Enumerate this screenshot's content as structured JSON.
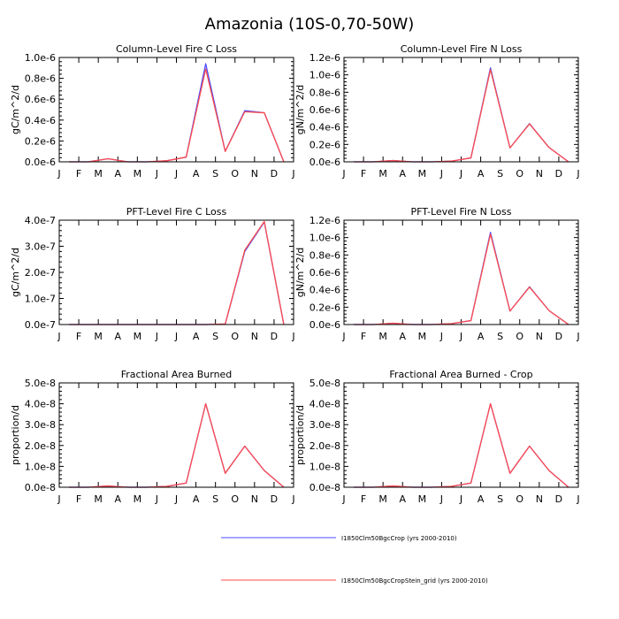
{
  "figure_title": "Amazonia (10S-0,70-50W)",
  "legend": [
    {
      "label": "I1850Clm50BgcCrop (yrs 2000-2010)",
      "color": "#4b4bff"
    },
    {
      "label": "I1850Clm50BgcCropStein_grid (yrs 2000-2010)",
      "color": "#ff4b4b"
    }
  ],
  "chart_data": [
    {
      "type": "line",
      "title": "Column-Level Fire C Loss",
      "ylabel": "gC/m^2/d",
      "ylim": [
        0,
        1e-06
      ],
      "yticks": [
        0,
        2e-07,
        4e-07,
        6e-07,
        8e-07,
        1e-06
      ],
      "ytick_labels": [
        "0.0e-6",
        "0.2e-6",
        "0.4e-6",
        "0.6e-6",
        "0.8e-6",
        "1.0e-6"
      ],
      "x_tick_labels": [
        "J",
        "F",
        "M",
        "A",
        "M",
        "J",
        "J",
        "A",
        "S",
        "O",
        "N",
        "D",
        "J"
      ],
      "series": [
        {
          "name": "I1850Clm50BgcCrop (yrs 2000-2010)",
          "color": "#4b4bff",
          "values": [
            0,
            0,
            3e-08,
            0,
            0,
            1e-08,
            4.5e-08,
            9.4e-07,
            1e-07,
            4.9e-07,
            4.7e-07,
            0
          ]
        },
        {
          "name": "I1850Clm50BgcCropStein_grid (yrs 2000-2010)",
          "color": "#ff4b4b",
          "values": [
            0,
            0,
            3e-08,
            0,
            0,
            1e-08,
            4.5e-08,
            8.9e-07,
            1e-07,
            4.8e-07,
            4.7e-07,
            0
          ]
        }
      ]
    },
    {
      "type": "line",
      "title": "Column-Level Fire N Loss",
      "ylabel": "gN/m^2/d",
      "ylim": [
        0,
        1.2e-06
      ],
      "yticks": [
        0,
        2e-07,
        4e-07,
        6e-07,
        8e-07,
        1e-06,
        1.2e-06
      ],
      "ytick_labels": [
        "0.0e-6",
        "0.2e-6",
        "0.4e-6",
        "0.6e-6",
        "0.8e-6",
        "1.0e-6",
        "1.2e-6"
      ],
      "x_tick_labels": [
        "J",
        "F",
        "M",
        "A",
        "M",
        "J",
        "J",
        "A",
        "S",
        "O",
        "N",
        "D",
        "J"
      ],
      "series": [
        {
          "name": "I1850Clm50BgcCrop (yrs 2000-2010)",
          "color": "#4b4bff",
          "values": [
            0,
            0,
            1.5e-08,
            0,
            0,
            8e-09,
            4.5e-08,
            1.08e-06,
            1.6e-07,
            4.4e-07,
            1.65e-07,
            0
          ]
        },
        {
          "name": "I1850Clm50BgcCropStein_grid (yrs 2000-2010)",
          "color": "#ff4b4b",
          "values": [
            0,
            0,
            1.5e-08,
            0,
            0,
            8e-09,
            4.5e-08,
            1.06e-06,
            1.6e-07,
            4.35e-07,
            1.65e-07,
            0
          ]
        }
      ]
    },
    {
      "type": "line",
      "title": "PFT-Level Fire C Loss",
      "ylabel": "gC/m^2/d",
      "ylim": [
        0,
        4e-07
      ],
      "yticks": [
        0,
        1e-07,
        2e-07,
        3e-07,
        4e-07
      ],
      "ytick_labels": [
        "0.0e-7",
        "1.0e-7",
        "2.0e-7",
        "3.0e-7",
        "4.0e-7"
      ],
      "x_tick_labels": [
        "J",
        "F",
        "M",
        "A",
        "M",
        "J",
        "J",
        "A",
        "S",
        "O",
        "N",
        "D",
        "J"
      ],
      "series": [
        {
          "name": "I1850Clm50BgcCrop (yrs 2000-2010)",
          "color": "#4b4bff",
          "values": [
            0,
            0,
            0,
            0,
            0,
            0,
            0,
            0,
            2e-09,
            2.8e-07,
            3.93e-07,
            0
          ]
        },
        {
          "name": "I1850Clm50BgcCropStein_grid (yrs 2000-2010)",
          "color": "#ff4b4b",
          "values": [
            0,
            0,
            0,
            0,
            0,
            0,
            0,
            0,
            2e-09,
            2.85e-07,
            3.95e-07,
            0
          ]
        }
      ]
    },
    {
      "type": "line",
      "title": "PFT-Level Fire N Loss",
      "ylabel": "gN/m^2/d",
      "ylim": [
        0,
        1.2e-06
      ],
      "yticks": [
        0,
        2e-07,
        4e-07,
        6e-07,
        8e-07,
        1e-06,
        1.2e-06
      ],
      "ytick_labels": [
        "0.0e-6",
        "0.2e-6",
        "0.4e-6",
        "0.6e-6",
        "0.8e-6",
        "1.0e-6",
        "1.2e-6"
      ],
      "x_tick_labels": [
        "J",
        "F",
        "M",
        "A",
        "M",
        "J",
        "J",
        "A",
        "S",
        "O",
        "N",
        "D",
        "J"
      ],
      "series": [
        {
          "name": "I1850Clm50BgcCrop (yrs 2000-2010)",
          "color": "#4b4bff",
          "values": [
            0,
            0,
            1.5e-08,
            0,
            0,
            1e-08,
            4.5e-08,
            1.06e-06,
            1.55e-07,
            4.35e-07,
            1.6e-07,
            0
          ]
        },
        {
          "name": "I1850Clm50BgcCropStein_grid (yrs 2000-2010)",
          "color": "#ff4b4b",
          "values": [
            0,
            0,
            1.5e-08,
            0,
            0,
            1e-08,
            4.5e-08,
            1.04e-06,
            1.55e-07,
            4.3e-07,
            1.6e-07,
            0
          ]
        }
      ]
    },
    {
      "type": "line",
      "title": "Fractional Area Burned",
      "ylabel": "proportion/d",
      "ylim": [
        0,
        5e-08
      ],
      "yticks": [
        0,
        1e-08,
        2e-08,
        3e-08,
        4e-08,
        5e-08
      ],
      "ytick_labels": [
        "0.0e-8",
        "1.0e-8",
        "2.0e-8",
        "3.0e-8",
        "4.0e-8",
        "5.0e-8"
      ],
      "x_tick_labels": [
        "J",
        "F",
        "M",
        "A",
        "M",
        "J",
        "J",
        "A",
        "S",
        "O",
        "N",
        "D",
        "J"
      ],
      "series": [
        {
          "name": "I1850Clm50BgcCrop (yrs 2000-2010)",
          "color": "#4b4bff",
          "values": [
            0,
            0,
            6e-10,
            0,
            0,
            4e-10,
            2e-09,
            4e-08,
            6.7e-09,
            1.97e-08,
            8e-09,
            0
          ]
        },
        {
          "name": "I1850Clm50BgcCropStein_grid (yrs 2000-2010)",
          "color": "#ff4b4b",
          "values": [
            0,
            0,
            6e-10,
            0,
            0,
            4e-10,
            2e-09,
            4e-08,
            6.7e-09,
            1.97e-08,
            8e-09,
            0
          ]
        }
      ]
    },
    {
      "type": "line",
      "title": "Fractional Area Burned - Crop",
      "ylabel": "proportion/d",
      "ylim": [
        0,
        5e-08
      ],
      "yticks": [
        0,
        1e-08,
        2e-08,
        3e-08,
        4e-08,
        5e-08
      ],
      "ytick_labels": [
        "0.0e-8",
        "1.0e-8",
        "2.0e-8",
        "3.0e-8",
        "4.0e-8",
        "5.0e-8"
      ],
      "x_tick_labels": [
        "J",
        "F",
        "M",
        "A",
        "M",
        "J",
        "J",
        "A",
        "S",
        "O",
        "N",
        "D",
        "J"
      ],
      "series": [
        {
          "name": "I1850Clm50BgcCrop (yrs 2000-2010)",
          "color": "#4b4bff",
          "values": [
            0,
            0,
            6e-10,
            0,
            0,
            4e-10,
            2e-09,
            4e-08,
            6.7e-09,
            1.97e-08,
            8e-09,
            0
          ]
        },
        {
          "name": "I1850Clm50BgcCropStein_grid (yrs 2000-2010)",
          "color": "#ff4b4b",
          "values": [
            0,
            0,
            6e-10,
            0,
            0,
            4e-10,
            2e-09,
            4e-08,
            6.7e-09,
            1.97e-08,
            8e-09,
            0
          ]
        }
      ]
    }
  ]
}
